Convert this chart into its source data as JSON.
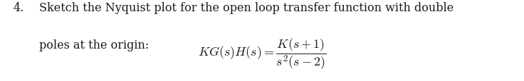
{
  "background_color": "#ffffff",
  "text_color": "#1a1a1a",
  "fig_width": 7.36,
  "fig_height": 1.16,
  "dpi": 100,
  "body_fontsize": 11.5,
  "math_fontsize": 13.0,
  "number_text": "4.",
  "line1_text": "Sketch the Nyquist plot for the open loop transfer function with double",
  "line2_text": "poles at the origin:",
  "equation": "$\\mathit{KG}(s)H(s) = \\dfrac{K(s+1)}{s^2(s-2)}$"
}
